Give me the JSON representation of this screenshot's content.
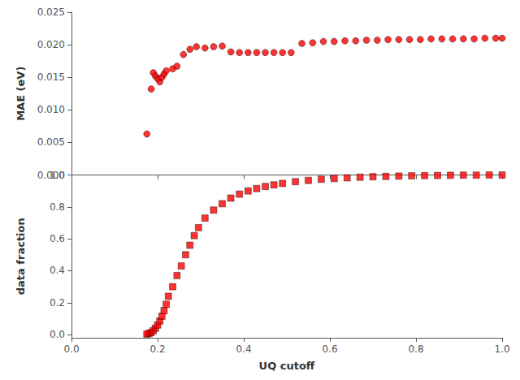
{
  "chart_data": [
    {
      "type": "scatter",
      "ylabel": "MAE (eV)",
      "xlim": [
        0.0,
        1.0
      ],
      "ylim": [
        0.0,
        0.025
      ],
      "xticks": [
        0.0,
        0.2,
        0.4,
        0.6,
        0.8,
        1.0
      ],
      "yticks": [
        {
          "value": 0.0,
          "label": "0.000"
        },
        0.005,
        {
          "value": 0.01,
          "label": "0.010"
        },
        0.015,
        {
          "value": 0.02,
          "label": "0.020"
        },
        0.025
      ],
      "tick_labels": "y",
      "grid": false,
      "color": "#ff0000",
      "marker": "circle",
      "x": [
        0.175,
        0.185,
        0.19,
        0.195,
        0.2,
        0.205,
        0.21,
        0.215,
        0.22,
        0.235,
        0.245,
        0.26,
        0.275,
        0.29,
        0.31,
        0.33,
        0.35,
        0.37,
        0.39,
        0.41,
        0.43,
        0.45,
        0.47,
        0.49,
        0.51,
        0.535,
        0.56,
        0.585,
        0.61,
        0.635,
        0.66,
        0.685,
        0.71,
        0.735,
        0.76,
        0.785,
        0.81,
        0.835,
        0.86,
        0.885,
        0.91,
        0.935,
        0.96,
        0.985,
        1.0
      ],
      "values": [
        0.0063,
        0.0132,
        0.0157,
        0.0152,
        0.0148,
        0.0143,
        0.015,
        0.0155,
        0.016,
        0.0163,
        0.0167,
        0.0185,
        0.0193,
        0.0197,
        0.0195,
        0.0197,
        0.0198,
        0.0189,
        0.0188,
        0.0188,
        0.0188,
        0.0188,
        0.0188,
        0.0188,
        0.0188,
        0.0202,
        0.0203,
        0.0205,
        0.0205,
        0.0206,
        0.0206,
        0.0207,
        0.0207,
        0.0208,
        0.0208,
        0.0208,
        0.0208,
        0.0209,
        0.0209,
        0.0209,
        0.0209,
        0.0209,
        0.021,
        0.021,
        0.021
      ]
    },
    {
      "type": "scatter",
      "xlabel": "UQ cutoff",
      "ylabel": "data fraction",
      "xlim": [
        0.0,
        1.0
      ],
      "ylim": [
        -0.02,
        1.0
      ],
      "xticks": [
        {
          "value": 0.0,
          "label": "0.0"
        },
        0.2,
        0.4,
        0.6,
        0.8,
        {
          "value": 1.0,
          "label": "1.0"
        }
      ],
      "yticks": [
        {
          "value": 0.0,
          "label": "0.0"
        },
        0.2,
        0.4,
        0.6,
        0.8,
        {
          "value": 1.0,
          "label": "1.0"
        }
      ],
      "grid": false,
      "color": "#ff0000",
      "marker": "square",
      "x": [
        0.175,
        0.18,
        0.185,
        0.19,
        0.195,
        0.2,
        0.205,
        0.21,
        0.215,
        0.22,
        0.225,
        0.235,
        0.245,
        0.255,
        0.265,
        0.275,
        0.285,
        0.295,
        0.31,
        0.33,
        0.35,
        0.37,
        0.39,
        0.41,
        0.43,
        0.45,
        0.47,
        0.49,
        0.52,
        0.55,
        0.58,
        0.61,
        0.64,
        0.67,
        0.7,
        0.73,
        0.76,
        0.79,
        0.82,
        0.85,
        0.88,
        0.91,
        0.94,
        0.97,
        1.0
      ],
      "values": [
        0.003,
        0.007,
        0.013,
        0.025,
        0.04,
        0.06,
        0.085,
        0.115,
        0.15,
        0.19,
        0.24,
        0.3,
        0.37,
        0.43,
        0.5,
        0.56,
        0.62,
        0.67,
        0.73,
        0.78,
        0.82,
        0.855,
        0.88,
        0.9,
        0.915,
        0.928,
        0.938,
        0.947,
        0.958,
        0.966,
        0.973,
        0.978,
        0.982,
        0.986,
        0.989,
        0.991,
        0.993,
        0.995,
        0.996,
        0.997,
        0.998,
        0.999,
        0.999,
        1.0,
        1.0
      ]
    }
  ]
}
